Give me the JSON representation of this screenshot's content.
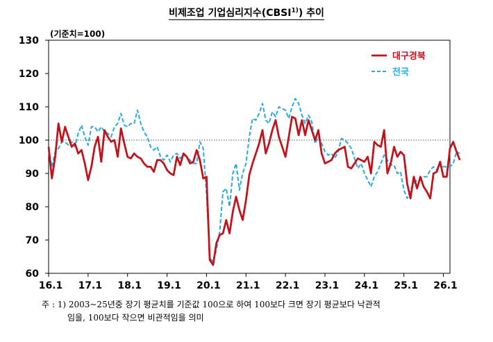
{
  "chart_data": {
    "type": "line",
    "title_main": "비제조업 기업심리지수(CBSI",
    "title_sup": "1)",
    "title_end": ") 추이",
    "unit": "(기준치=100)",
    "ylim": [
      60,
      130
    ],
    "yticks": [
      "130",
      "120",
      "110",
      "100",
      "90",
      "80",
      "70",
      "60"
    ],
    "xlim": [
      0,
      122
    ],
    "xtick_labels": [
      "16.1",
      "17.1",
      "18.1",
      "19.1",
      "20.1",
      "21.1",
      "22.1",
      "23.1",
      "24.1",
      "25.1",
      "26.1"
    ],
    "xtick_pos": [
      0,
      12,
      24,
      36,
      48,
      60,
      72,
      84,
      96,
      108,
      120
    ],
    "reference_line": 100,
    "legend_position": "top-right",
    "series": [
      {
        "name": "대구경북",
        "color": "#c0141c",
        "style": "solid",
        "values": [
          98,
          88.5,
          95,
          105,
          99.5,
          104,
          101,
          98,
          99,
          96,
          97,
          93,
          88,
          92,
          98,
          101,
          93.5,
          103,
          101,
          99.5,
          100,
          95,
          103.5,
          99,
          95,
          94.5,
          96,
          95,
          94.5,
          93,
          92,
          92,
          90.5,
          94,
          94,
          93,
          91,
          90,
          89.5,
          95,
          92.5,
          96,
          95,
          93,
          93.5,
          97,
          94,
          88.5,
          89,
          64,
          62.5,
          69,
          71.5,
          72,
          76,
          72,
          78.5,
          83,
          79,
          76,
          82,
          89.5,
          93,
          96,
          99,
          103,
          96,
          99,
          103,
          106,
          101,
          98,
          95,
          101,
          107,
          106.5,
          101.5,
          106,
          101.5,
          106,
          103,
          100,
          103,
          96,
          93,
          93.5,
          94,
          96,
          97,
          97.5,
          98,
          92,
          91.5,
          93,
          94.5,
          94,
          93.5,
          95,
          90,
          99.5,
          98.5,
          98,
          103,
          90,
          93,
          98,
          95,
          96.5,
          95.5,
          87,
          82.5,
          89,
          85.5,
          89,
          86,
          84.5,
          82.5,
          90,
          90.5,
          93.5,
          89,
          89,
          97.5,
          99.5,
          96.5,
          94
        ]
      },
      {
        "name": "전국",
        "color": "#29a9df",
        "style": "dashed",
        "values": [
          97.5,
          92,
          96.5,
          97.5,
          99.5,
          99.5,
          98.5,
          99.5,
          98,
          102,
          104.5,
          101,
          98.5,
          104,
          104,
          102.5,
          104,
          102.5,
          102,
          101,
          104,
          105,
          108,
          104.5,
          104,
          105,
          105,
          109,
          105,
          102.5,
          101,
          98,
          97,
          98,
          95,
          94,
          95.5,
          93.5,
          95.5,
          96,
          94.5,
          95.5,
          95,
          94,
          93,
          93,
          99.5,
          97.5,
          84,
          64.5,
          63.5,
          67,
          72.5,
          84.5,
          85.5,
          80,
          90,
          93,
          85,
          90,
          93,
          101,
          106.5,
          106,
          108,
          111,
          106,
          105,
          108.5,
          107,
          110,
          109.5,
          109,
          106.5,
          110,
          112.5,
          111,
          107.5,
          105,
          107.5,
          105.5,
          99,
          101,
          99,
          96.5,
          95.5,
          96,
          94.5,
          96.5,
          100.5,
          100,
          99,
          97.5,
          94.5,
          91.5,
          93,
          90,
          88,
          86,
          89,
          90.5,
          93,
          95.5,
          94,
          92.5,
          92.5,
          90,
          90.5,
          85,
          82.5,
          85,
          87,
          88,
          88,
          89,
          89,
          91,
          92,
          91,
          93,
          92,
          92,
          92,
          93,
          96.5,
          96
        ]
      }
    ]
  },
  "footnote": {
    "line1": "주 : 1) 2003~25년중 장기 평균치를 기준값 100으로 하여 100보다 크면 장기 평균보다 낙관적",
    "line2": "임을, 100보다 작으면 비관적임을 의미"
  }
}
